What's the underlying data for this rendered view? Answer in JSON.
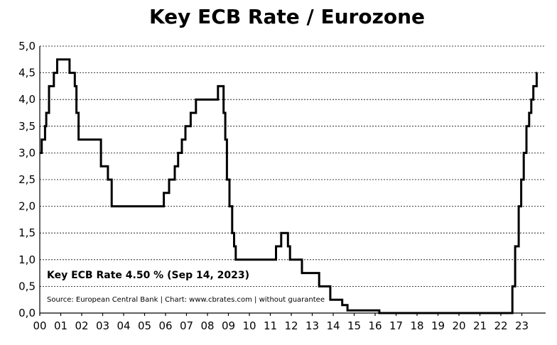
{
  "chart_data": {
    "type": "line",
    "title": "Key ECB Rate / Eurozone",
    "xlabel": "",
    "ylabel": "",
    "xlim": [
      2000,
      2023.8
    ],
    "ylim": [
      0,
      5
    ],
    "yticks": [
      "0,0",
      "0,5",
      "1,0",
      "1,5",
      "2,0",
      "2,5",
      "3,0",
      "3,5",
      "4,0",
      "4,5",
      "5,0"
    ],
    "xticks": [
      "00",
      "01",
      "02",
      "03",
      "04",
      "05",
      "06",
      "07",
      "08",
      "09",
      "10",
      "11",
      "12",
      "13",
      "14",
      "15",
      "16",
      "17",
      "18",
      "19",
      "20",
      "21",
      "22",
      "23"
    ],
    "grid": true,
    "annotation": "Key ECB Rate 4.50 % (Sep 14, 2023)",
    "source": "Source: European Central Bank | Chart: www.cbrates.com | without guarantee",
    "series": [
      {
        "points": [
          [
            2000.0,
            3.0
          ],
          [
            2000.09,
            3.25
          ],
          [
            2000.25,
            3.5
          ],
          [
            2000.31,
            3.75
          ],
          [
            2000.44,
            4.25
          ],
          [
            2000.67,
            4.5
          ],
          [
            2000.83,
            4.75
          ],
          [
            2001.42,
            4.5
          ],
          [
            2001.67,
            4.25
          ],
          [
            2001.75,
            3.75
          ],
          [
            2001.85,
            3.25
          ],
          [
            2002.92,
            2.75
          ],
          [
            2003.25,
            2.5
          ],
          [
            2003.43,
            2.0
          ],
          [
            2005.92,
            2.25
          ],
          [
            2006.17,
            2.5
          ],
          [
            2006.44,
            2.75
          ],
          [
            2006.6,
            3.0
          ],
          [
            2006.78,
            3.25
          ],
          [
            2006.95,
            3.5
          ],
          [
            2007.2,
            3.75
          ],
          [
            2007.45,
            4.0
          ],
          [
            2008.5,
            4.25
          ],
          [
            2008.77,
            3.75
          ],
          [
            2008.85,
            3.25
          ],
          [
            2008.93,
            2.5
          ],
          [
            2009.05,
            2.0
          ],
          [
            2009.18,
            1.5
          ],
          [
            2009.27,
            1.25
          ],
          [
            2009.35,
            1.0
          ],
          [
            2011.27,
            1.25
          ],
          [
            2011.52,
            1.5
          ],
          [
            2011.84,
            1.25
          ],
          [
            2011.94,
            1.0
          ],
          [
            2012.51,
            0.75
          ],
          [
            2013.33,
            0.5
          ],
          [
            2013.86,
            0.25
          ],
          [
            2014.43,
            0.15
          ],
          [
            2014.68,
            0.05
          ],
          [
            2016.2,
            0.0
          ],
          [
            2022.55,
            0.5
          ],
          [
            2022.68,
            1.25
          ],
          [
            2022.85,
            2.0
          ],
          [
            2022.97,
            2.5
          ],
          [
            2023.09,
            3.0
          ],
          [
            2023.22,
            3.5
          ],
          [
            2023.35,
            3.75
          ],
          [
            2023.45,
            4.0
          ],
          [
            2023.55,
            4.25
          ],
          [
            2023.71,
            4.5
          ],
          [
            2023.72,
            4.5
          ]
        ]
      }
    ]
  }
}
